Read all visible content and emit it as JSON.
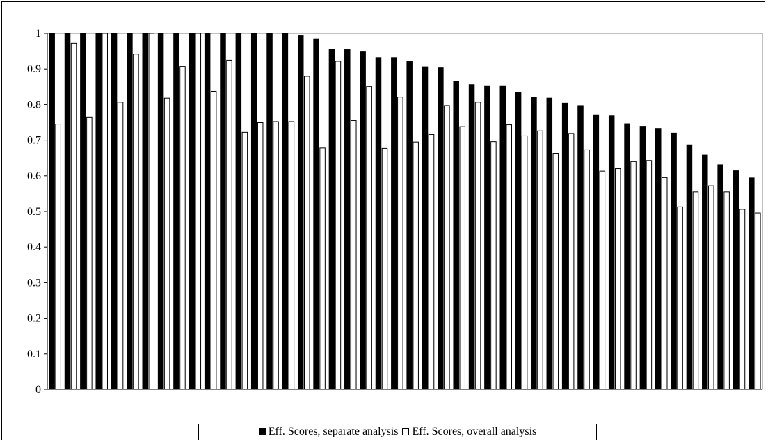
{
  "chart_data": {
    "type": "bar",
    "title": "",
    "xlabel": "",
    "ylabel": "",
    "ylim": [
      0,
      1
    ],
    "yticks": [
      "0",
      "0.1",
      "0.2",
      "0.3",
      "0.4",
      "0.5",
      "0.6",
      "0.7",
      "0.8",
      "0.9",
      "1"
    ],
    "grid": false,
    "legend_position": "bottom",
    "series": [
      {
        "name": "Eff. Scores, separate analysis",
        "color": "#000000",
        "values": [
          1,
          1,
          1,
          1,
          1,
          1,
          1,
          1,
          1,
          1,
          1,
          1,
          1,
          1,
          1,
          1,
          0.993,
          0.984,
          0.955,
          0.954,
          0.948,
          0.932,
          0.932,
          0.922,
          0.906,
          0.903,
          0.866,
          0.856,
          0.853,
          0.853,
          0.834,
          0.821,
          0.818,
          0.804,
          0.797,
          0.771,
          0.768,
          0.746,
          0.739,
          0.733,
          0.72,
          0.687,
          0.658,
          0.631,
          0.614,
          0.594
        ]
      },
      {
        "name": "Eff. Scores, overall analysis",
        "color": "#ffffff",
        "values": [
          0.745,
          0.972,
          0.765,
          1,
          0.807,
          0.942,
          1,
          0.818,
          0.907,
          1,
          0.837,
          0.925,
          0.722,
          0.749,
          0.752,
          0.752,
          0.879,
          0.678,
          0.922,
          0.755,
          0.851,
          0.677,
          0.821,
          0.695,
          0.716,
          0.797,
          0.738,
          0.807,
          0.696,
          0.743,
          0.712,
          0.726,
          0.663,
          0.719,
          0.673,
          0.613,
          0.62,
          0.64,
          0.643,
          0.595,
          0.513,
          0.555,
          0.572,
          0.555,
          0.506,
          0.496
        ]
      }
    ]
  }
}
